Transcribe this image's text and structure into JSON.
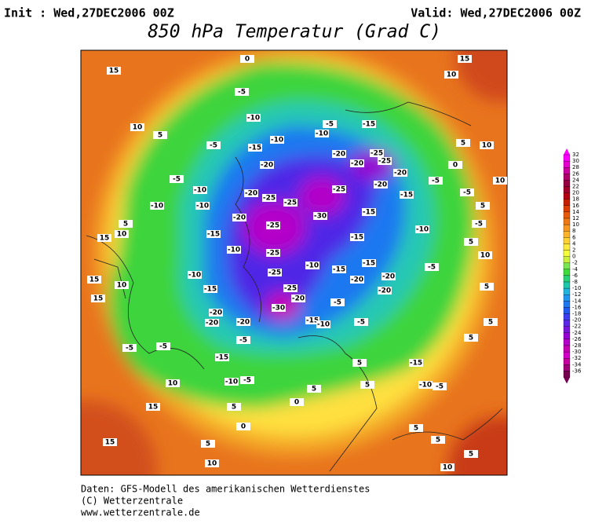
{
  "header": {
    "init": "Init : Wed,27DEC2006 00Z",
    "valid": "Valid: Wed,27DEC2006 00Z",
    "title": "850 hPa Temperatur (Grad C)"
  },
  "map": {
    "contour_labels": [
      15,
      10,
      10,
      5,
      -5,
      -10,
      -10,
      -5,
      -10,
      -5,
      0,
      -10,
      -15,
      -20,
      -20,
      -25,
      -20,
      -25,
      -25,
      -25,
      -25,
      -30,
      -25,
      -5,
      -10,
      -15,
      -20,
      -25,
      -20,
      -25,
      -20,
      -20,
      -15,
      -15,
      -15,
      -10,
      -15,
      -20,
      -15,
      -20,
      -20,
      -5,
      -10,
      -15,
      -10,
      -10,
      -15,
      -20,
      -20,
      -20,
      -30,
      -20,
      -25,
      -5,
      -15,
      -10,
      -5,
      -5,
      -15,
      -10,
      -5,
      -5,
      -5,
      -10,
      5,
      10,
      15,
      15,
      10,
      15,
      10,
      15,
      15,
      10,
      5,
      5,
      0,
      0,
      5,
      5,
      5,
      5,
      -15,
      -10,
      -5,
      10,
      5,
      5,
      15,
      -5,
      5,
      10,
      5,
      -5,
      -5,
      0,
      5,
      10,
      10,
      5,
      5,
      5
    ]
  },
  "colorbar": {
    "levels": [
      32,
      30,
      28,
      26,
      24,
      22,
      20,
      18,
      16,
      14,
      12,
      10,
      8,
      6,
      4,
      2,
      0,
      -2,
      -4,
      -6,
      -8,
      -10,
      -12,
      -14,
      -16,
      -18,
      -20,
      -22,
      -24,
      -26,
      -28,
      -30,
      -32,
      -34,
      -36
    ],
    "colors": [
      "#ff00ff",
      "#e600d0",
      "#cc00a0",
      "#b0006e",
      "#990044",
      "#a0002a",
      "#b40010",
      "#c81e00",
      "#dc3c00",
      "#e85a0a",
      "#f07814",
      "#f8961e",
      "#ffb428",
      "#ffd232",
      "#ffeb3c",
      "#f5ff3c",
      "#c8f03c",
      "#78e650",
      "#3cdc3c",
      "#28d278",
      "#1ec8aa",
      "#1eb4dc",
      "#1e96f0",
      "#1e78f0",
      "#1e5af0",
      "#3c3cf0",
      "#5a28e6",
      "#7814dc",
      "#9600d2",
      "#b400c8",
      "#c800b4",
      "#d200c8",
      "#c800a0",
      "#a00078",
      "#780050"
    ]
  },
  "footer": [
    "Daten: GFS-Modell des amerikanischen Wetterdienstes",
    "(C) Wetterzentrale",
    "www.wetterzentrale.de"
  ]
}
